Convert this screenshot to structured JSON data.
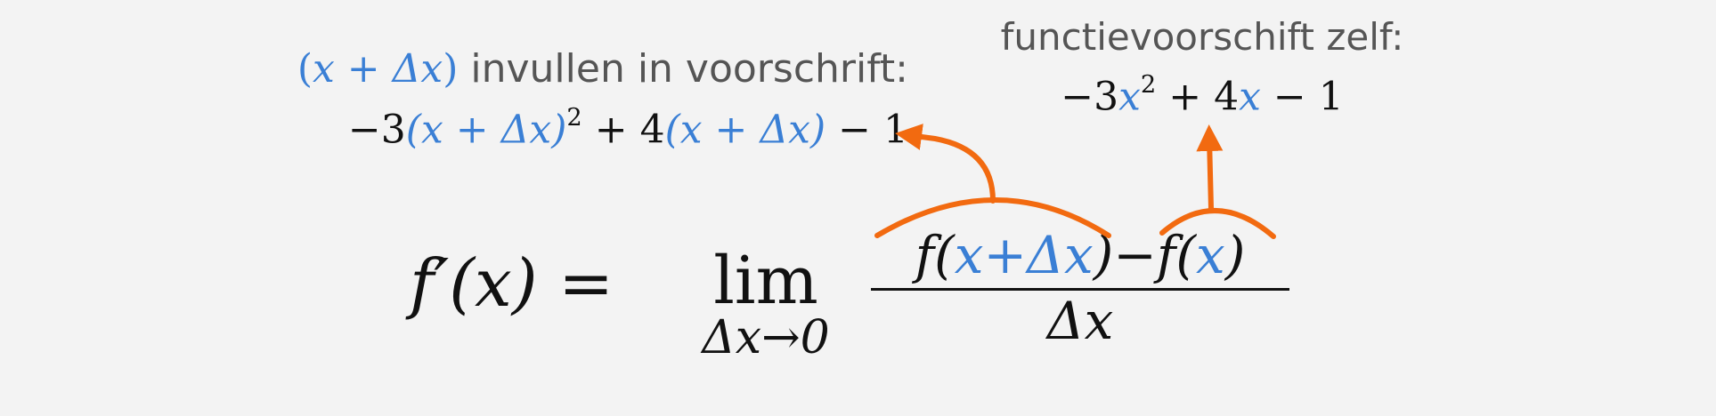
{
  "annotation_left": {
    "line1_expr_open": "(",
    "line1_expr_var": "x + Δx",
    "line1_expr_close": ")",
    "line1_text": " invullen in voorschrift:",
    "line2_prefix": "−3",
    "line2_paren1": "(x + Δx)",
    "line2_exp": "2",
    "line2_mid": " + 4",
    "line2_paren2": "(x + Δx)",
    "line2_suffix": " − 1"
  },
  "annotation_right": {
    "line1_text": "functievoorschift zelf:",
    "line2_prefix": "−3",
    "line2_var1": "x",
    "line2_exp": "2",
    "line2_mid": " + 4",
    "line2_var2": "x",
    "line2_suffix": " − 1"
  },
  "formula": {
    "lhs": "f′(x) =",
    "lim": "lim",
    "lim_sub": "Δx→0",
    "num_f1": "f(",
    "num_arg1": "x+Δx",
    "num_close1": ")−f(",
    "num_arg2": "x",
    "num_close2": ")",
    "denominator": "Δx"
  },
  "colors": {
    "background": "#f3f3f3",
    "variable_blue": "#3a7fd5",
    "arrow_orange": "#f26a10",
    "text_gray": "#555555"
  }
}
